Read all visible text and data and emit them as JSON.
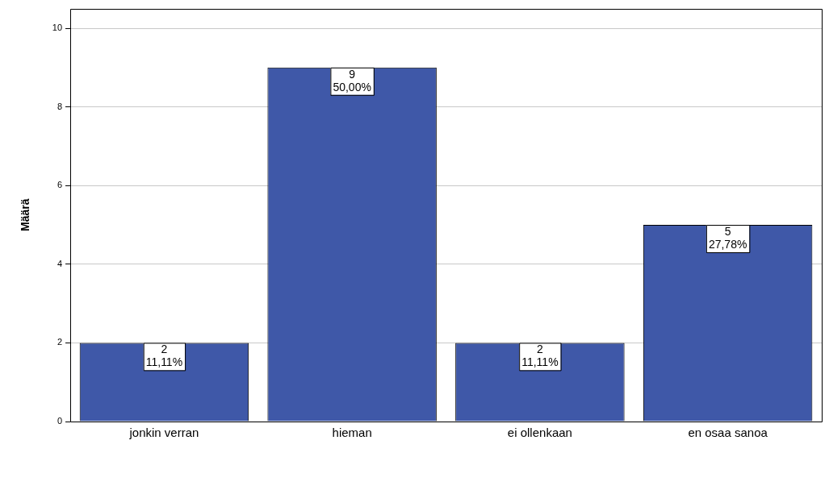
{
  "chart_data": {
    "type": "bar",
    "ylabel": "Määrä",
    "categories": [
      "jonkin verran",
      "hieman",
      "ei ollenkaan",
      "en osaa sanoa"
    ],
    "values": [
      2,
      9,
      2,
      5
    ],
    "value_labels": [
      "2\n11,11%",
      "9\n50,00%",
      "2\n11,11%",
      "5\n27,78%"
    ],
    "color": "#3f58a8",
    "ylim": [
      0,
      10.5
    ],
    "yticks": [
      0,
      2,
      4,
      6,
      8,
      10
    ],
    "grid": "y",
    "legend": false
  }
}
